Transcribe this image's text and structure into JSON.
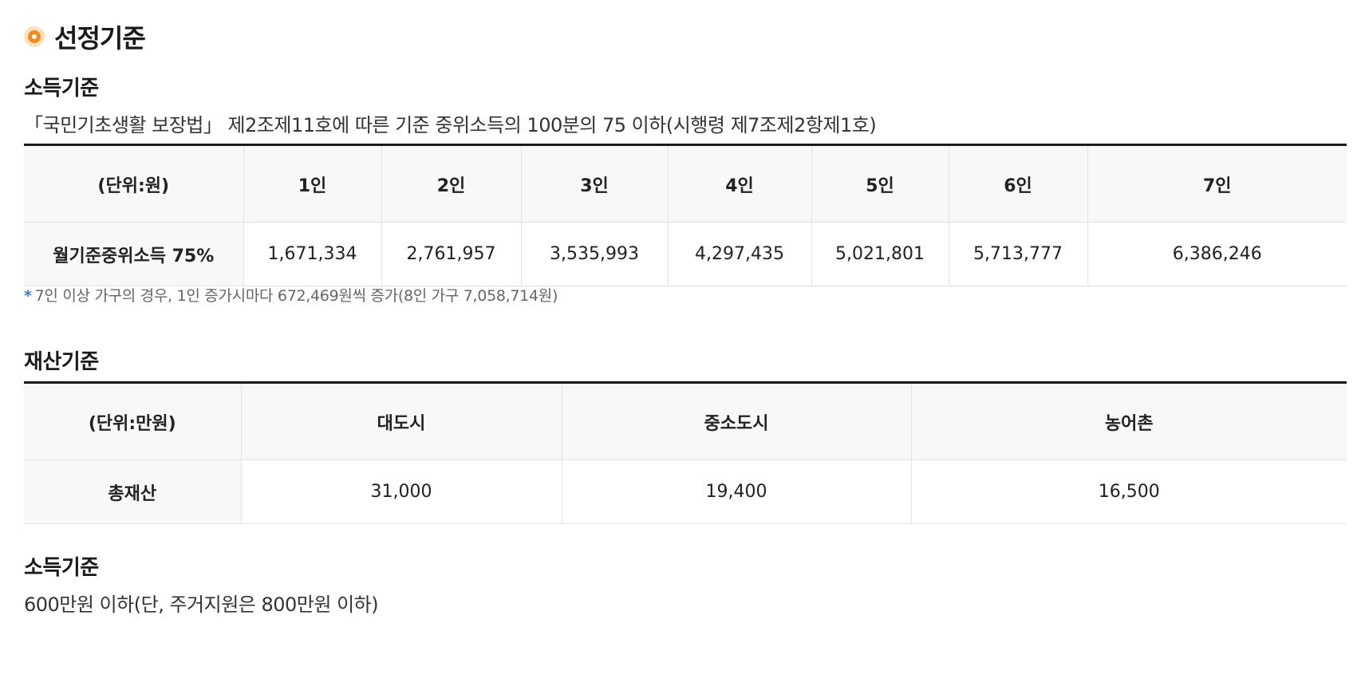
{
  "title": "선정기준",
  "income": {
    "heading": "소득기준",
    "description": "「국민기초생활 보장법」 제2조제11호에 따른 기준 중위소득의 100분의 75 이하(시행령 제7조제2항제1호)",
    "table": {
      "unit": "(단위:원)",
      "columns": [
        "1인",
        "2인",
        "3인",
        "4인",
        "5인",
        "6인",
        "7인"
      ],
      "row_label": "월기준중위소득 75%",
      "values": [
        "1,671,334",
        "2,761,957",
        "3,535,993",
        "4,297,435",
        "5,021,801",
        "5,713,777",
        "6,386,246"
      ]
    },
    "note_mark": "*",
    "note": "7인 이상 가구의 경우, 1인 증가시마다 672,469원씩 증가(8인 가구 7,058,714원)"
  },
  "property": {
    "heading": "재산기준",
    "table": {
      "unit": "(단위:만원)",
      "columns": [
        "대도시",
        "중소도시",
        "농어촌"
      ],
      "row_label": "총재산",
      "values": [
        "31,000",
        "19,400",
        "16,500"
      ]
    }
  },
  "income2": {
    "heading": "소득기준",
    "description": "600만원 이하(단, 주거지원은 800만원 이하)"
  },
  "colors": {
    "accent": "#f08c1e",
    "accent_light": "#ffe2bd",
    "note_mark": "#2f7fd6",
    "table_header_bg": "#f8f8f8",
    "table_top_border": "#1a1a1a"
  },
  "icons": {
    "title_marker": "circle-bullet-icon"
  }
}
